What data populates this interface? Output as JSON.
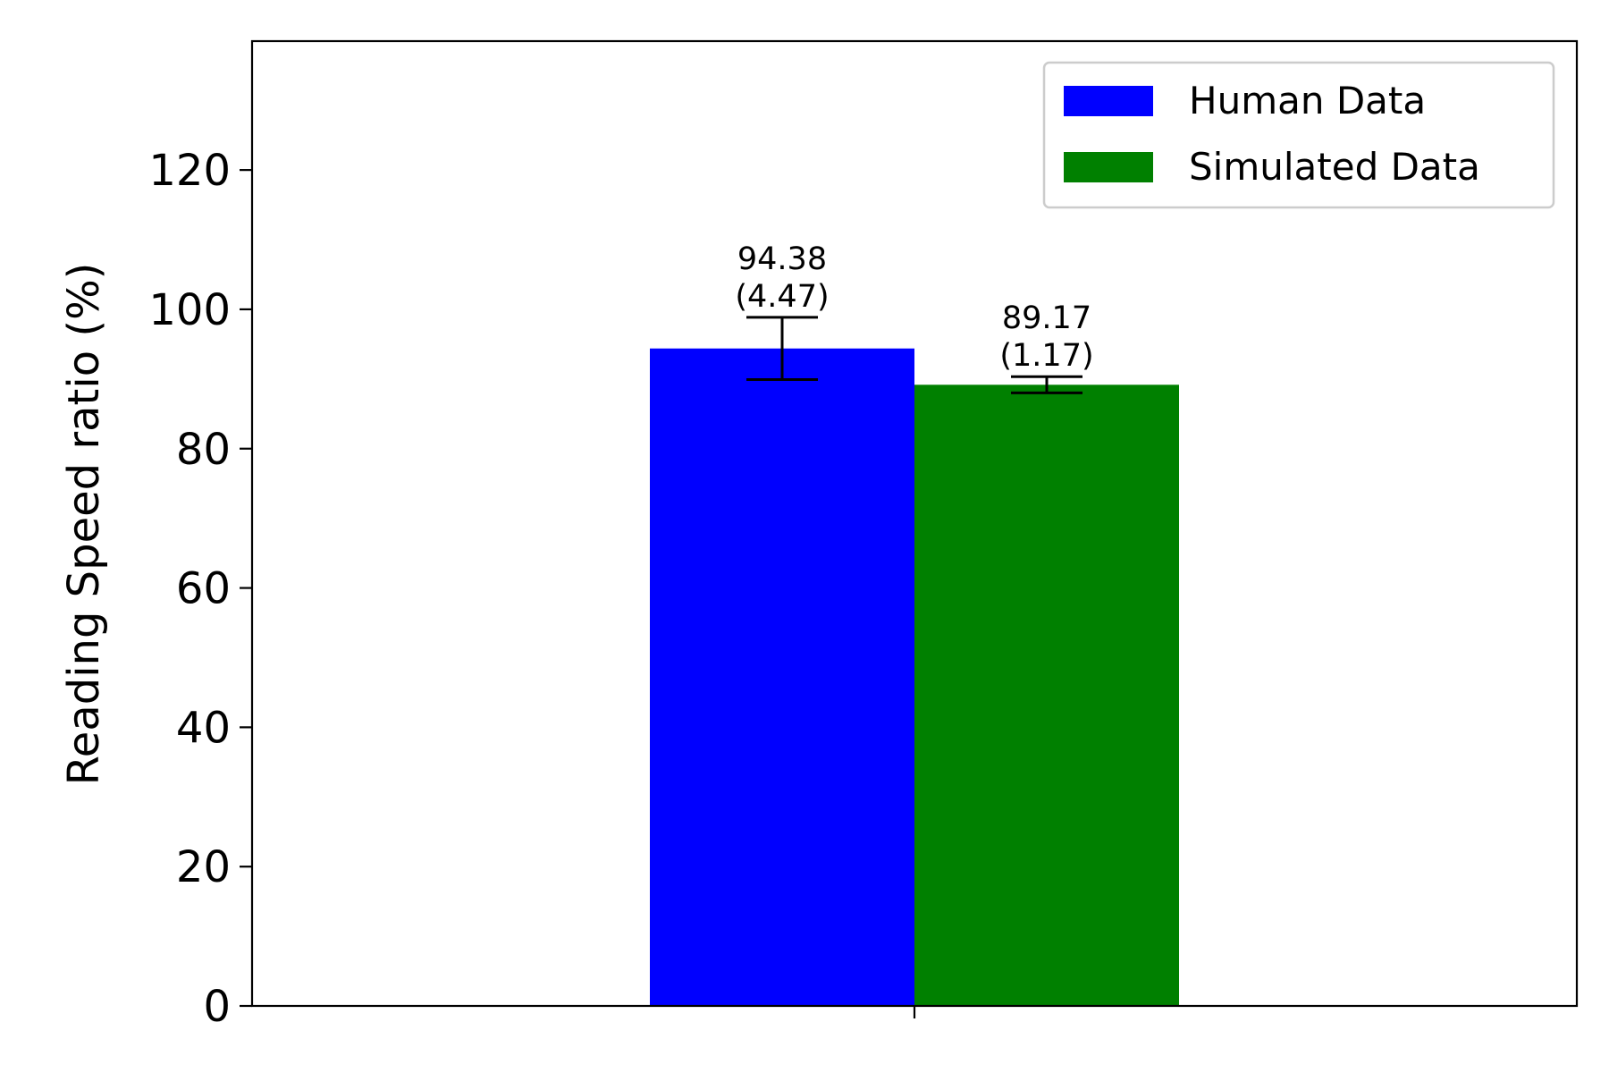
{
  "chart_data": {
    "type": "bar",
    "categories": [
      ""
    ],
    "series": [
      {
        "name": "Human Data",
        "values": [
          94.38
        ],
        "errors": [
          4.47
        ],
        "color": "#0000ff",
        "label_value": "94.38",
        "label_error": "(4.47)"
      },
      {
        "name": "Simulated Data",
        "values": [
          89.17
        ],
        "errors": [
          1.17
        ],
        "color": "#008000",
        "label_value": "89.17",
        "label_error": "(1.17)"
      }
    ],
    "title": "",
    "xlabel": "",
    "ylabel": "Reading Speed ratio (%)",
    "ylim": [
      0,
      138.5
    ],
    "yticks": [
      0,
      20,
      40,
      60,
      80,
      100,
      120
    ],
    "ytick_labels": [
      "0",
      "20",
      "40",
      "60",
      "80",
      "100",
      "120"
    ],
    "grid": false,
    "legend_position": "top-right"
  }
}
